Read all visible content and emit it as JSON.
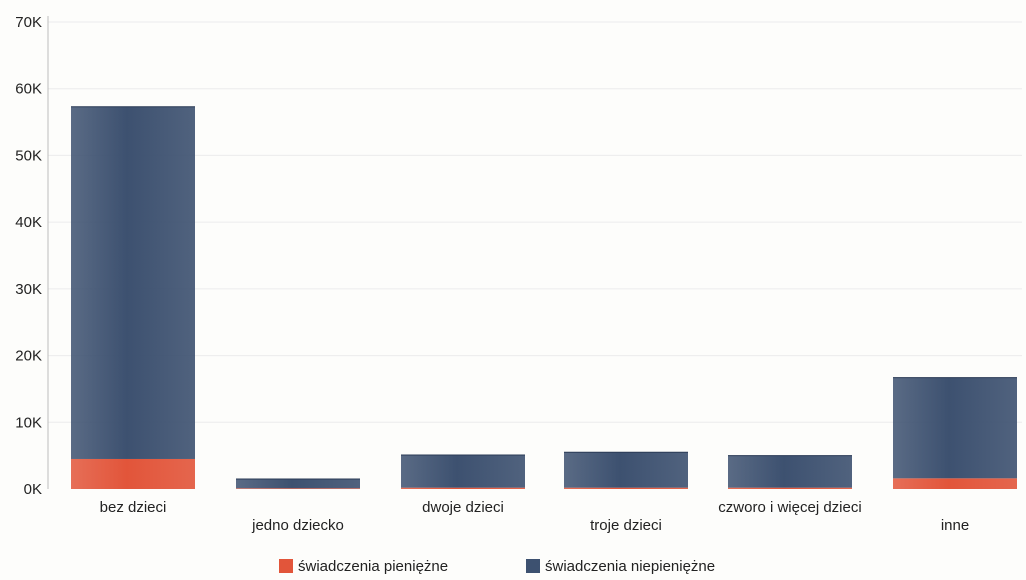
{
  "chart_data": {
    "type": "bar",
    "stacked": true,
    "title": "",
    "xlabel": "",
    "ylabel": "",
    "ylim": [
      0,
      70000
    ],
    "yticks": [
      0,
      10000,
      20000,
      30000,
      40000,
      50000,
      60000,
      70000
    ],
    "ytick_labels": [
      "0K",
      "10K",
      "20K",
      "30K",
      "40K",
      "50K",
      "60K",
      "70K"
    ],
    "grid": true,
    "legend_position": "bottom",
    "categories": [
      "bez dzieci",
      "jedno dziecko",
      "dwoje dzieci",
      "troje dzieci",
      "czworo i więcej dzieci",
      "inne"
    ],
    "series": [
      {
        "name": "świadczenia pieniężne",
        "color": "#e2553a",
        "values": [
          4500,
          100,
          200,
          200,
          200,
          1600
        ]
      },
      {
        "name": "świadczenia niepieniężne",
        "color": "#3d5170",
        "values": [
          52800,
          1400,
          4900,
          5300,
          4800,
          15100
        ]
      }
    ]
  }
}
